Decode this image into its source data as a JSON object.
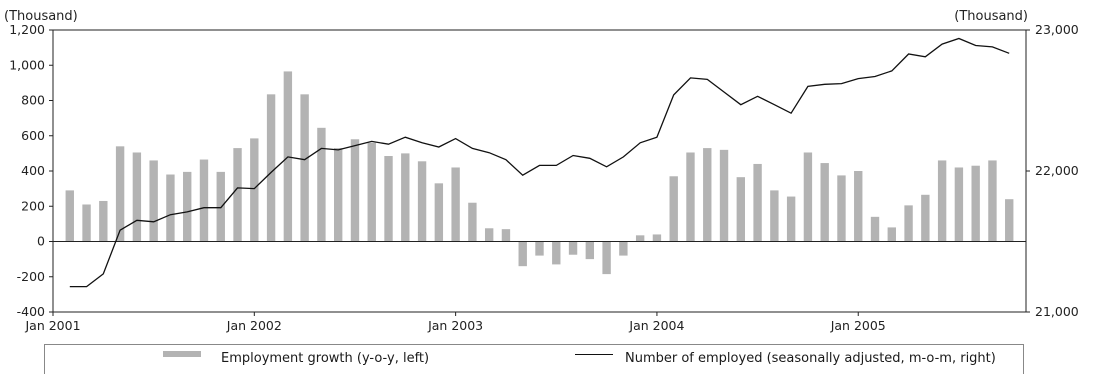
{
  "chart_data": {
    "type": "bar+line",
    "left_unit": "(Thousand)",
    "right_unit": "(Thousand)",
    "left_ylim": [
      -400,
      1200
    ],
    "left_ticks": [
      "-400",
      "-200",
      "0",
      "200",
      "400",
      "600",
      "800",
      "1,000",
      "1,200"
    ],
    "right_ylim": [
      21000,
      23000
    ],
    "right_ticks": [
      "21,000",
      "22,000",
      "23,000"
    ],
    "x_tick_labels": [
      "Jan 2001",
      "Jan 2002",
      "Jan 2003",
      "Jan 2004",
      "Jan 2005"
    ],
    "series": [
      {
        "name": "Employment growth (y-o-y, left)",
        "type": "bar",
        "color": "#b3b3b3",
        "values": [
          290,
          210,
          230,
          540,
          505,
          460,
          380,
          395,
          465,
          395,
          530,
          585,
          835,
          965,
          835,
          645,
          530,
          580,
          560,
          485,
          500,
          455,
          330,
          420,
          220,
          75,
          70,
          -140,
          -80,
          -130,
          -75,
          -100,
          -185,
          -80,
          35,
          40,
          370,
          505,
          530,
          520,
          365,
          440,
          290,
          255,
          505,
          445,
          375,
          400,
          140,
          80,
          205,
          265,
          460,
          420,
          430,
          460,
          240
        ]
      },
      {
        "name": "Number of employed (seasonally adjusted, m-o-m, right)",
        "type": "line",
        "color": "#111111",
        "values": [
          21180,
          21180,
          21270,
          21580,
          21650,
          21640,
          21690,
          21710,
          21740,
          21740,
          21880,
          21875,
          21990,
          22100,
          22080,
          22160,
          22150,
          22180,
          22210,
          22190,
          22240,
          22200,
          22170,
          22230,
          22160,
          22130,
          22080,
          21970,
          22040,
          22040,
          22110,
          22090,
          22030,
          22100,
          22200,
          22240,
          22540,
          22660,
          22650,
          22560,
          22470,
          22530,
          22470,
          22410,
          22600,
          22615,
          22620,
          22655,
          22670,
          22710,
          22830,
          22810,
          22900,
          22940,
          22890,
          22880,
          22835
        ]
      }
    ]
  },
  "legend": {
    "bar_label": "Employment growth (y-o-y, left)",
    "line_label": "Number of employed (seasonally adjusted, m-o-m, right)"
  }
}
